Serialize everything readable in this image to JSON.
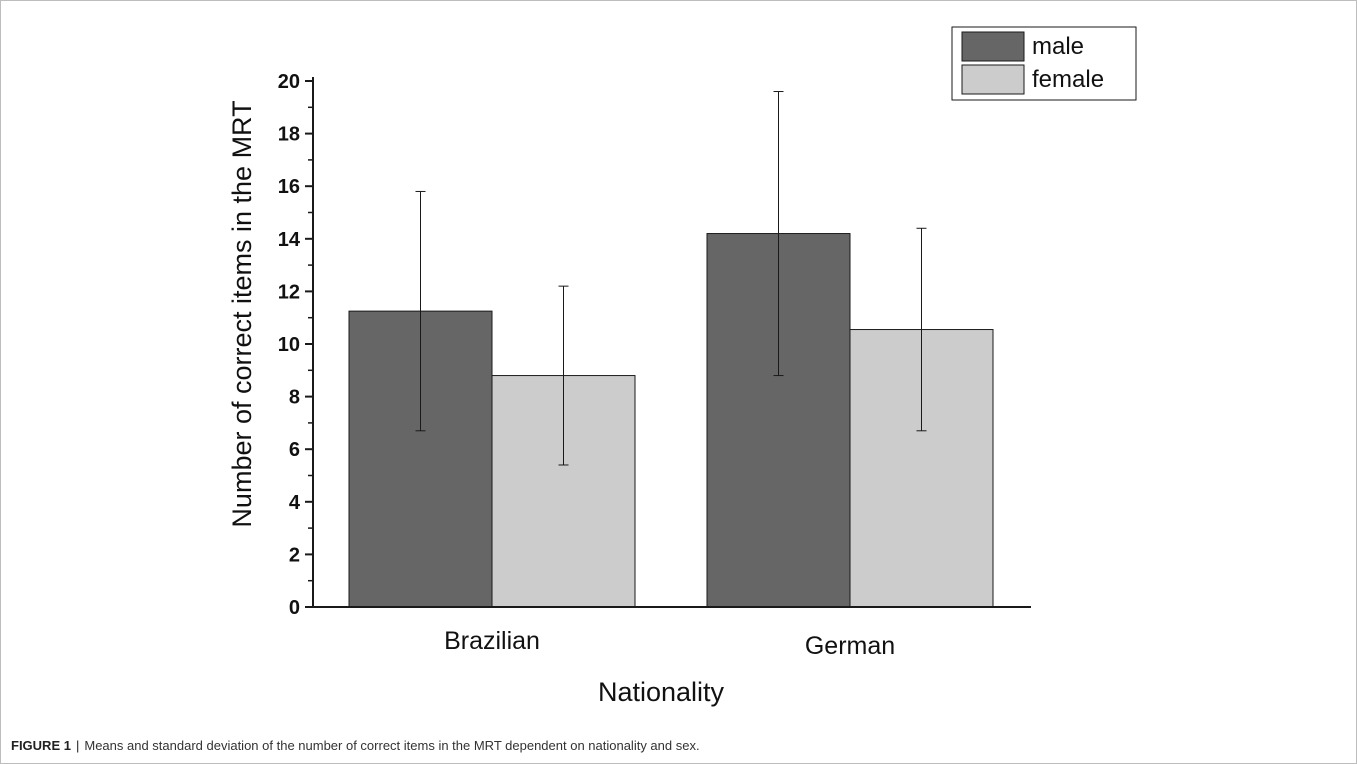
{
  "chart_data": {
    "type": "bar",
    "categories": [
      "Brazilian",
      "German"
    ],
    "series": [
      {
        "name": "male",
        "values": [
          11.25,
          14.2
        ],
        "sd": [
          4.55,
          5.4
        ],
        "color": "#666666"
      },
      {
        "name": "female",
        "values": [
          8.8,
          10.55
        ],
        "sd": [
          3.4,
          3.85
        ],
        "color": "#cccccc"
      }
    ],
    "xlabel": "Nationality",
    "ylabel": "Number of correct items in the MRT",
    "ylim": [
      0,
      20
    ],
    "yticks": [
      "0",
      "2",
      "4",
      "6",
      "8",
      "10",
      "12",
      "14",
      "16",
      "18",
      "20"
    ],
    "error_bars": "standard deviation",
    "grid": false,
    "legend_position": "top-right"
  },
  "caption": {
    "label": "FIGURE 1",
    "separator": "|",
    "text": "Means and standard deviation of the number of correct items in the MRT dependent on nationality and sex."
  }
}
